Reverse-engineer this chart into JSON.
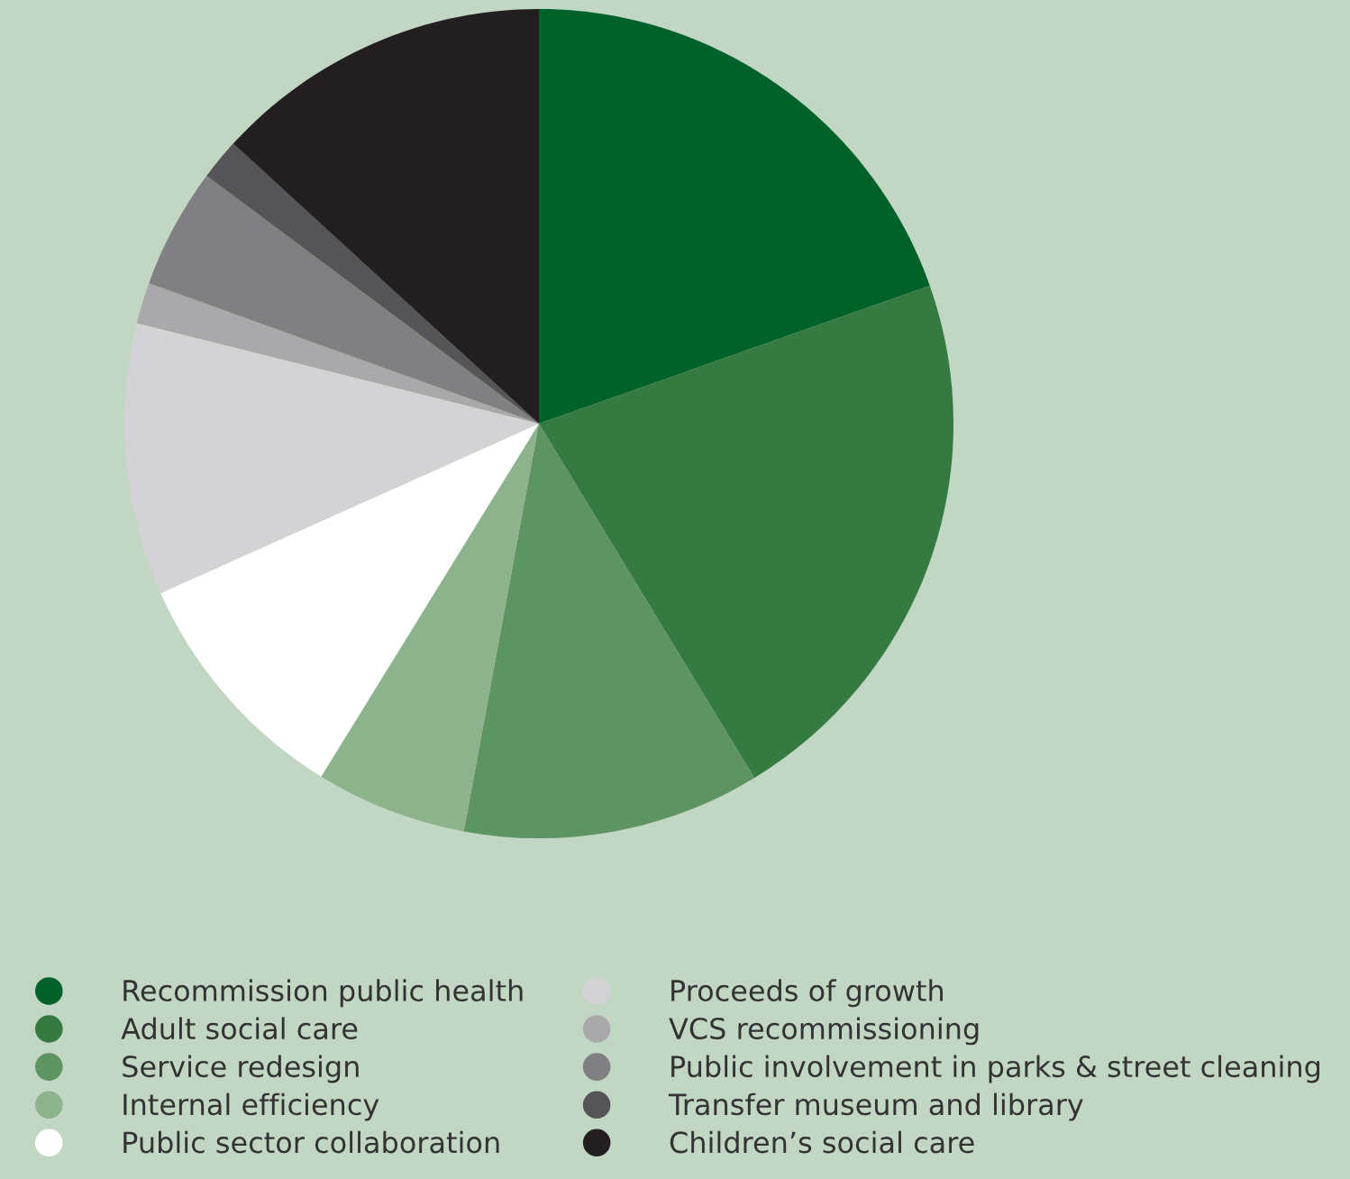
{
  "chart_data": {
    "type": "pie",
    "categories": [
      "Recommission public health",
      "Adult social care",
      "Service redesign",
      "Internal efficiency",
      "Public sector collaboration",
      "Proceeds of growth",
      "VCS recommissioning",
      "Public involvement in parks & street cleaning",
      "Transfer museum and library",
      "Children’s social care"
    ],
    "values": [
      19.6,
      21.7,
      11.6,
      5.9,
      9.5,
      10.6,
      1.6,
      4.7,
      1.6,
      13.2
    ],
    "colors": [
      "#00622a",
      "#357a40",
      "#5e9462",
      "#8db38c",
      "#ffffff",
      "#d3d3d5",
      "#a9a9ab",
      "#808083",
      "#555557",
      "#231f20"
    ],
    "legend": "bottom"
  }
}
